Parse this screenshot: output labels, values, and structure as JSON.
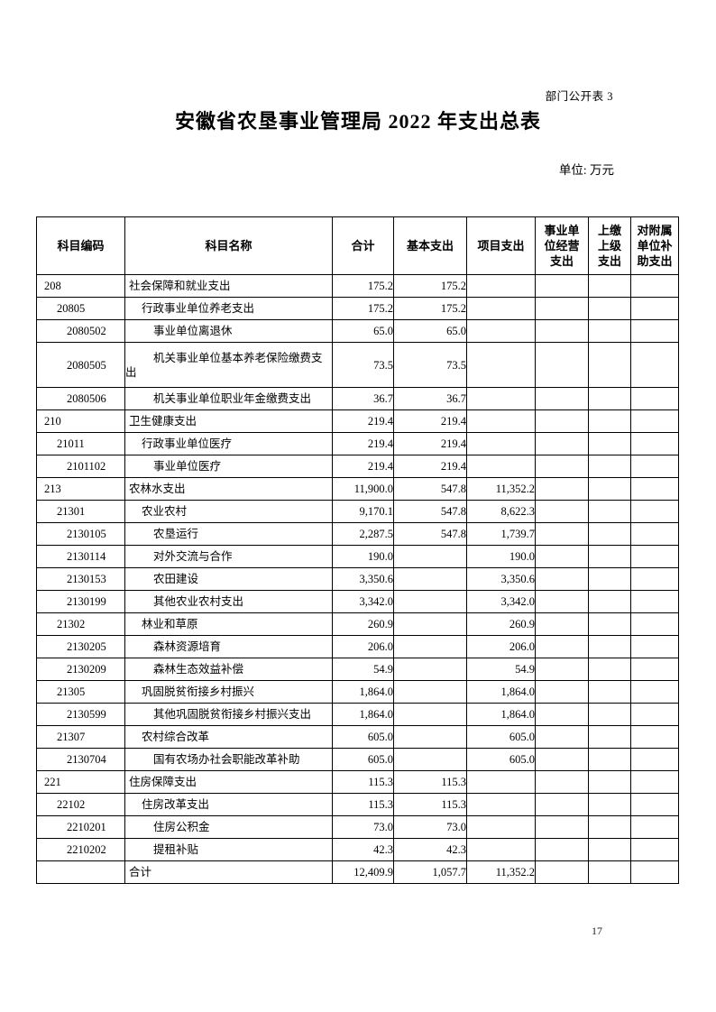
{
  "page": {
    "doc_note": "部门公开表 3",
    "title": "安徽省农垦事业管理局 2022 年支出总表",
    "unit_note": "单位: 万元",
    "page_number": "17"
  },
  "table": {
    "columns": [
      "科目编码",
      "科目名称",
      "合计",
      "基本支出",
      "项目支出",
      "事业单\n位经营\n支出",
      "上缴\n上级\n支出",
      "对附属\n单位补\n助支出"
    ],
    "rows": [
      {
        "code": "208",
        "name": "社会保障和就业支出",
        "level": 0,
        "total": "175.2",
        "basic": "175.2"
      },
      {
        "code": "20805",
        "name": "行政事业单位养老支出",
        "level": 1,
        "total": "175.2",
        "basic": "175.2"
      },
      {
        "code": "2080502",
        "name": "事业单位离退休",
        "level": 2,
        "total": "65.0",
        "basic": "65.0"
      },
      {
        "code": "2080505",
        "name": "机关事业单位基本养老保险缴费支出",
        "level": 2,
        "total": "73.5",
        "basic": "73.5",
        "tall": true
      },
      {
        "code": "2080506",
        "name": "机关事业单位职业年金缴费支出",
        "level": 2,
        "total": "36.7",
        "basic": "36.7"
      },
      {
        "code": "210",
        "name": "卫生健康支出",
        "level": 0,
        "total": "219.4",
        "basic": "219.4"
      },
      {
        "code": "21011",
        "name": "行政事业单位医疗",
        "level": 1,
        "total": "219.4",
        "basic": "219.4"
      },
      {
        "code": "2101102",
        "name": "事业单位医疗",
        "level": 2,
        "total": "219.4",
        "basic": "219.4"
      },
      {
        "code": "213",
        "name": "农林水支出",
        "level": 0,
        "total": "11,900.0",
        "basic": "547.8",
        "project": "11,352.2"
      },
      {
        "code": "21301",
        "name": "农业农村",
        "level": 1,
        "total": "9,170.1",
        "basic": "547.8",
        "project": "8,622.3"
      },
      {
        "code": "2130105",
        "name": "农垦运行",
        "level": 2,
        "total": "2,287.5",
        "basic": "547.8",
        "project": "1,739.7"
      },
      {
        "code": "2130114",
        "name": "对外交流与合作",
        "level": 2,
        "total": "190.0",
        "project": "190.0"
      },
      {
        "code": "2130153",
        "name": "农田建设",
        "level": 2,
        "total": "3,350.6",
        "project": "3,350.6"
      },
      {
        "code": "2130199",
        "name": "其他农业农村支出",
        "level": 2,
        "total": "3,342.0",
        "project": "3,342.0"
      },
      {
        "code": "21302",
        "name": "林业和草原",
        "level": 1,
        "total": "260.9",
        "project": "260.9"
      },
      {
        "code": "2130205",
        "name": "森林资源培育",
        "level": 2,
        "total": "206.0",
        "project": "206.0"
      },
      {
        "code": "2130209",
        "name": "森林生态效益补偿",
        "level": 2,
        "total": "54.9",
        "project": "54.9"
      },
      {
        "code": "21305",
        "name": "巩固脱贫衔接乡村振兴",
        "level": 1,
        "total": "1,864.0",
        "project": "1,864.0"
      },
      {
        "code": "2130599",
        "name": "其他巩固脱贫衔接乡村振兴支出",
        "level": 2,
        "total": "1,864.0",
        "project": "1,864.0"
      },
      {
        "code": "21307",
        "name": "农村综合改革",
        "level": 1,
        "total": "605.0",
        "project": "605.0"
      },
      {
        "code": "2130704",
        "name": "国有农场办社会职能改革补助",
        "level": 2,
        "total": "605.0",
        "project": "605.0"
      },
      {
        "code": "221",
        "name": "住房保障支出",
        "level": 0,
        "total": "115.3",
        "basic": "115.3"
      },
      {
        "code": "22102",
        "name": "住房改革支出",
        "level": 1,
        "total": "115.3",
        "basic": "115.3"
      },
      {
        "code": "2210201",
        "name": "住房公积金",
        "level": 2,
        "total": "73.0",
        "basic": "73.0"
      },
      {
        "code": "2210202",
        "name": "提租补贴",
        "level": 2,
        "total": "42.3",
        "basic": "42.3"
      },
      {
        "name": "合计",
        "level": 0,
        "total": "12,409.9",
        "basic": "1,057.7",
        "project": "11,352.2"
      }
    ]
  }
}
